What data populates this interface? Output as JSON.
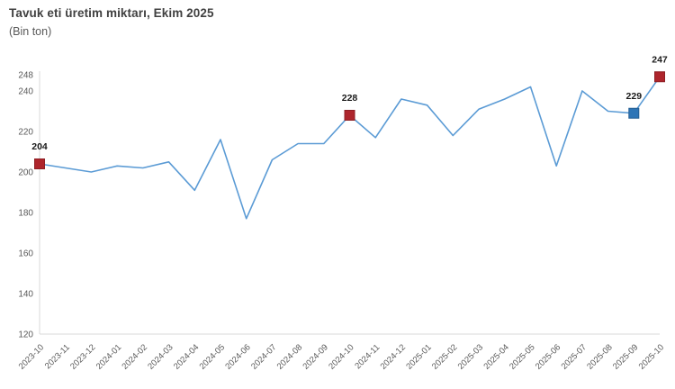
{
  "title": "Tavuk eti üretim miktarı, Ekim 2025",
  "subtitle": "(Bin ton)",
  "colors": {
    "line": "#5B9BD5",
    "marker_red": "#AE252C",
    "marker_red_stroke": "#8E1F24",
    "marker_blue": "#2E75B6",
    "marker_blue_stroke": "#255E92",
    "axis_line": "#D9D9D9",
    "tick_text": "#595959",
    "annotation_text": "#1a1a1a",
    "title_text": "#404040"
  },
  "chart_data": {
    "type": "line",
    "title": "Tavuk eti üretim miktarı, Ekim 2025",
    "subtitle": "(Bin ton)",
    "xlabel": "",
    "ylabel": "Bin ton",
    "categories": [
      "2023-10",
      "2023-11",
      "2023-12",
      "2024-01",
      "2024-02",
      "2024-03",
      "2024-04",
      "2024-05",
      "2024-06",
      "2024-07",
      "2024-08",
      "2024-09",
      "2024-10",
      "2024-11",
      "2024-12",
      "2025-01",
      "2025-02",
      "2025-03",
      "2025-04",
      "2025-05",
      "2025-06",
      "2025-07",
      "2025-08",
      "2025-09",
      "2025-10"
    ],
    "values": [
      204,
      202,
      200,
      203,
      202,
      205,
      191,
      216,
      177,
      206,
      214,
      214,
      228,
      217,
      236,
      233,
      218,
      231,
      236,
      242,
      203,
      240,
      230,
      229,
      247
    ],
    "ylim": [
      120,
      248
    ],
    "yticks": [
      120,
      140,
      160,
      180,
      200,
      220,
      240,
      248
    ],
    "grid": false,
    "legend": "none",
    "annotations": [
      {
        "index": 0,
        "label": "204",
        "marker": "red"
      },
      {
        "index": 12,
        "label": "228",
        "marker": "red"
      },
      {
        "index": 23,
        "label": "229",
        "marker": "blue"
      },
      {
        "index": 24,
        "label": "247",
        "marker": "red"
      }
    ]
  }
}
